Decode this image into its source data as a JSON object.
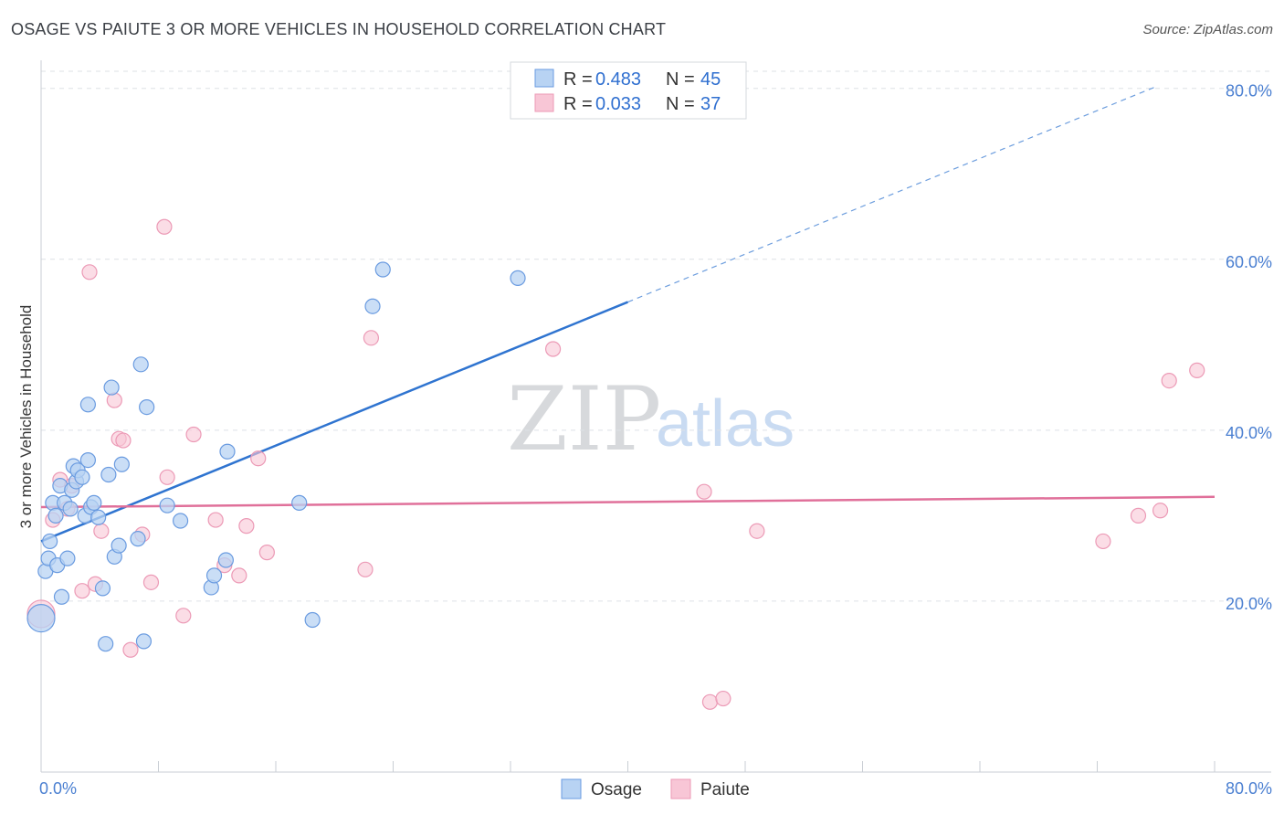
{
  "title": "OSAGE VS PAIUTE 3 OR MORE VEHICLES IN HOUSEHOLD CORRELATION CHART",
  "source": "Source: ZipAtlas.com",
  "watermark": {
    "zip": "ZIP",
    "atlas": "atlas"
  },
  "colors": {
    "osage_fill": "#b8d3f3",
    "osage_stroke": "#6a9be0",
    "osage_line": "#2f74d0",
    "paiute_fill": "#f8c6d6",
    "paiute_stroke": "#ec9ab6",
    "paiute_line": "#e0709a",
    "grid": "#dde1e6",
    "tick_text": "#4a7fd1"
  },
  "legend": {
    "osage": {
      "r_label": "R = ",
      "r_value": "0.483",
      "n_label": "N = ",
      "n_value": "45"
    },
    "paiute": {
      "r_label": "R = ",
      "r_value": "0.033",
      "n_label": "N = ",
      "n_value": "37"
    }
  },
  "bottom_legend": {
    "osage": "Osage",
    "paiute": "Paiute"
  },
  "chart_data": {
    "type": "scatter",
    "title": "OSAGE VS PAIUTE 3 OR MORE VEHICLES IN HOUSEHOLD CORRELATION CHART",
    "xlabel": "",
    "ylabel": "3 or more Vehicles in Household",
    "xlim": [
      0,
      80
    ],
    "ylim": [
      0,
      82
    ],
    "x_tick_labels": {
      "left": "0.0%",
      "right": "80.0%"
    },
    "y_ticks": [
      {
        "value": 20,
        "label": "20.0%"
      },
      {
        "value": 40,
        "label": "40.0%"
      },
      {
        "value": 60,
        "label": "60.0%"
      },
      {
        "value": 80,
        "label": "80.0%"
      }
    ],
    "series": [
      {
        "name": "Osage",
        "r": 0.483,
        "n": 45,
        "trend": {
          "x0": 0,
          "y0": 27.0,
          "x1": 40,
          "y1": 55.0,
          "dash_to_x": 76,
          "dash_to_y": 80.2
        },
        "points": [
          {
            "x": 0.0,
            "y": 18.0,
            "big": true
          },
          {
            "x": 0.3,
            "y": 23.5
          },
          {
            "x": 0.5,
            "y": 25.0
          },
          {
            "x": 0.6,
            "y": 27.0
          },
          {
            "x": 0.8,
            "y": 31.5
          },
          {
            "x": 1.0,
            "y": 30.0
          },
          {
            "x": 1.1,
            "y": 24.2
          },
          {
            "x": 1.3,
            "y": 33.5
          },
          {
            "x": 1.4,
            "y": 20.5
          },
          {
            "x": 1.6,
            "y": 31.5
          },
          {
            "x": 1.8,
            "y": 25.0
          },
          {
            "x": 2.0,
            "y": 30.8
          },
          {
            "x": 2.1,
            "y": 33.0
          },
          {
            "x": 2.2,
            "y": 35.8
          },
          {
            "x": 2.4,
            "y": 34.0
          },
          {
            "x": 2.5,
            "y": 35.3
          },
          {
            "x": 2.8,
            "y": 34.5
          },
          {
            "x": 3.0,
            "y": 30.0
          },
          {
            "x": 3.2,
            "y": 36.5
          },
          {
            "x": 3.2,
            "y": 43.0
          },
          {
            "x": 3.4,
            "y": 31.0
          },
          {
            "x": 3.6,
            "y": 31.5
          },
          {
            "x": 3.9,
            "y": 29.8
          },
          {
            "x": 4.2,
            "y": 21.5
          },
          {
            "x": 4.4,
            "y": 15.0
          },
          {
            "x": 4.6,
            "y": 34.8
          },
          {
            "x": 4.8,
            "y": 45.0
          },
          {
            "x": 5.0,
            "y": 25.2
          },
          {
            "x": 5.3,
            "y": 26.5
          },
          {
            "x": 5.5,
            "y": 36.0
          },
          {
            "x": 6.6,
            "y": 27.3
          },
          {
            "x": 6.8,
            "y": 47.7
          },
          {
            "x": 7.0,
            "y": 15.3
          },
          {
            "x": 7.2,
            "y": 42.7
          },
          {
            "x": 8.6,
            "y": 31.2
          },
          {
            "x": 9.5,
            "y": 29.4
          },
          {
            "x": 11.6,
            "y": 21.6
          },
          {
            "x": 11.8,
            "y": 23.0
          },
          {
            "x": 12.6,
            "y": 24.8
          },
          {
            "x": 12.7,
            "y": 37.5
          },
          {
            "x": 17.6,
            "y": 31.5
          },
          {
            "x": 18.5,
            "y": 17.8
          },
          {
            "x": 22.6,
            "y": 54.5
          },
          {
            "x": 23.3,
            "y": 58.8
          },
          {
            "x": 32.5,
            "y": 57.8
          }
        ]
      },
      {
        "name": "Paiute",
        "r": 0.033,
        "n": 37,
        "trend": {
          "x0": 0,
          "y0": 31.0,
          "x1": 80,
          "y1": 32.2
        },
        "points": [
          {
            "x": 0.0,
            "y": 18.5,
            "big": true
          },
          {
            "x": 0.8,
            "y": 29.5
          },
          {
            "x": 1.3,
            "y": 34.2
          },
          {
            "x": 1.8,
            "y": 30.8
          },
          {
            "x": 2.1,
            "y": 33.5
          },
          {
            "x": 2.8,
            "y": 21.2
          },
          {
            "x": 3.3,
            "y": 58.5
          },
          {
            "x": 3.7,
            "y": 22.0
          },
          {
            "x": 4.1,
            "y": 28.2
          },
          {
            "x": 5.0,
            "y": 43.5
          },
          {
            "x": 5.3,
            "y": 39.0
          },
          {
            "x": 5.6,
            "y": 38.8
          },
          {
            "x": 6.1,
            "y": 14.3
          },
          {
            "x": 6.9,
            "y": 27.8
          },
          {
            "x": 7.5,
            "y": 22.2
          },
          {
            "x": 8.4,
            "y": 63.8
          },
          {
            "x": 8.6,
            "y": 34.5
          },
          {
            "x": 9.7,
            "y": 18.3
          },
          {
            "x": 10.4,
            "y": 39.5
          },
          {
            "x": 11.9,
            "y": 29.5
          },
          {
            "x": 12.5,
            "y": 24.2
          },
          {
            "x": 13.5,
            "y": 23.0
          },
          {
            "x": 14.0,
            "y": 28.8
          },
          {
            "x": 14.8,
            "y": 36.7
          },
          {
            "x": 15.4,
            "y": 25.7
          },
          {
            "x": 22.1,
            "y": 23.7
          },
          {
            "x": 22.5,
            "y": 50.8
          },
          {
            "x": 34.9,
            "y": 49.5
          },
          {
            "x": 45.2,
            "y": 32.8
          },
          {
            "x": 45.6,
            "y": 8.2
          },
          {
            "x": 46.5,
            "y": 8.6
          },
          {
            "x": 48.8,
            "y": 28.2
          },
          {
            "x": 72.4,
            "y": 27.0
          },
          {
            "x": 74.8,
            "y": 30.0
          },
          {
            "x": 76.3,
            "y": 30.6
          },
          {
            "x": 76.9,
            "y": 45.8
          },
          {
            "x": 78.8,
            "y": 47.0
          }
        ]
      }
    ]
  }
}
